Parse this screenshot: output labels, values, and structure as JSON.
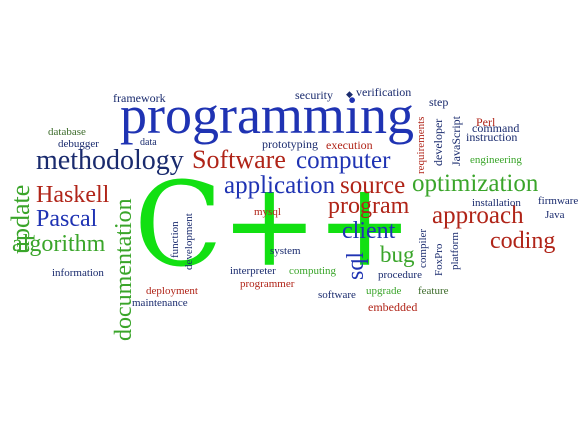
{
  "colors": {
    "blue": "#1f33b3",
    "darkblue": "#1a2b6e",
    "red": "#b02418",
    "green": "#3aa52a",
    "brightgreen": "#12e012",
    "olive": "#3c6b2a",
    "navy": "#23256a"
  },
  "words": {
    "cpp": "C++",
    "programming": "programming",
    "methodology": "methodology",
    "software_big": "Software",
    "computer": "computer",
    "application": "application",
    "source": "source",
    "optimization": "optimization",
    "program": "program",
    "approach": "approach",
    "client": "client",
    "coding": "coding",
    "haskell": "Haskell",
    "pascal": "Pascal",
    "algorithm": "algorithm",
    "update": "update",
    "documentation": "documentation",
    "bug": "bug",
    "sql": "sql",
    "framework": "framework",
    "security": "security",
    "verification": "verification",
    "step": "step",
    "database": "database",
    "debugger": "debugger",
    "data": "data",
    "prototyping": "prototyping",
    "execution": "execution",
    "requirements": "requirements",
    "developer": "developer",
    "javascript": "JavaScript",
    "perl": "Perl",
    "instruction": "instruction",
    "command": "command",
    "engineering": "engineering",
    "installation": "installation",
    "firmware": "firmware",
    "java": "Java",
    "function": "function",
    "development": "development",
    "mysql": "mysql",
    "system": "system",
    "compiler": "compiler",
    "foxpro": "FoxPro",
    "platform": "platform",
    "information": "information",
    "interpreter": "interpreter",
    "computing": "computing",
    "programmer": "programmer",
    "procedure": "procedure",
    "deployment": "deployment",
    "maintenance": "maintenance",
    "software_small": "software",
    "upgrade": "upgrade",
    "feature": "feature",
    "embedded": "embedded"
  }
}
